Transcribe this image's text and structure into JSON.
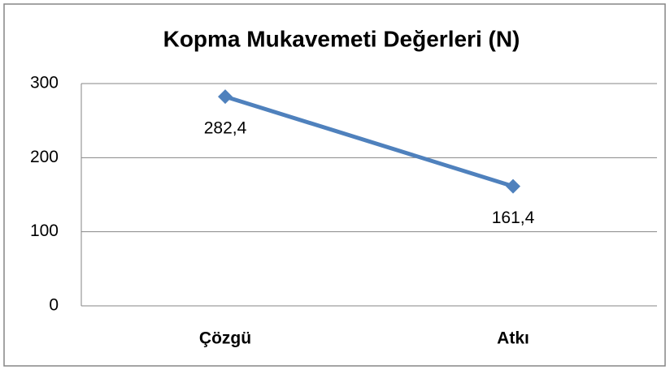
{
  "chart_data": {
    "type": "line",
    "title": "Kopma Mukavemeti Değerleri (N)",
    "categories": [
      "Çözgü",
      "Atkı"
    ],
    "series": [
      {
        "values": [
          282.4,
          161.4
        ],
        "value_labels": [
          "282,4",
          "161,4"
        ],
        "color": "#4f81bd"
      }
    ],
    "ylim": [
      0,
      300
    ],
    "yticks": [
      0,
      100,
      200,
      300
    ],
    "grid": true
  }
}
